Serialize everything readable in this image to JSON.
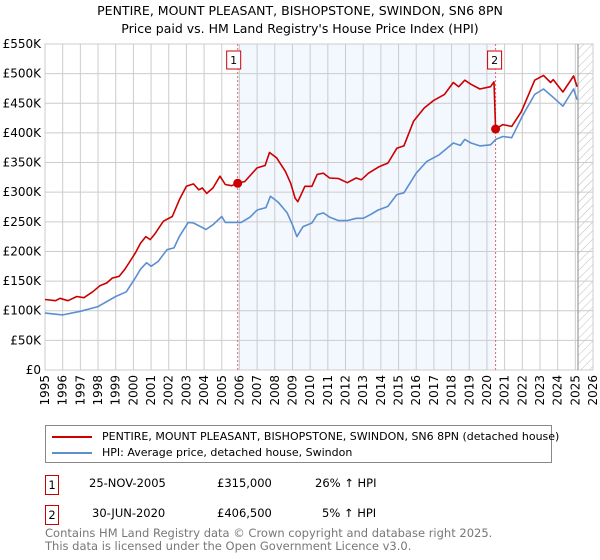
{
  "chart_data": {
    "type": "line",
    "title": "PENTIRE, MOUNT PLEASANT, BISHOPSTONE, SWINDON, SN6 8PN",
    "subtitle": "Price paid vs. HM Land Registry's House Price Index (HPI)",
    "xlim": [
      1995,
      2026
    ],
    "ylim": [
      0,
      550000
    ],
    "grid": true,
    "x_ticks": [
      "1995",
      "1996",
      "1997",
      "1998",
      "1999",
      "2000",
      "2001",
      "2002",
      "2003",
      "2004",
      "2005",
      "2006",
      "2007",
      "2008",
      "2009",
      "2010",
      "2011",
      "2012",
      "2013",
      "2014",
      "2015",
      "2016",
      "2017",
      "2018",
      "2019",
      "2020",
      "2021",
      "2022",
      "2023",
      "2024",
      "2025",
      "2026"
    ],
    "y_ticks": [
      {
        "value": 0,
        "label": "£0"
      },
      {
        "value": 50000,
        "label": "£50K"
      },
      {
        "value": 100000,
        "label": "£100K"
      },
      {
        "value": 150000,
        "label": "£150K"
      },
      {
        "value": 200000,
        "label": "£200K"
      },
      {
        "value": 250000,
        "label": "£250K"
      },
      {
        "value": 300000,
        "label": "£300K"
      },
      {
        "value": 350000,
        "label": "£350K"
      },
      {
        "value": 400000,
        "label": "£400K"
      },
      {
        "value": 450000,
        "label": "£450K"
      },
      {
        "value": 500000,
        "label": "£500K"
      },
      {
        "value": 550000,
        "label": "£550K"
      }
    ],
    "shaded_range": [
      2005.9,
      2020.49
    ],
    "future_hatch_from": 2025.15,
    "series": [
      {
        "name": "PENTIRE, MOUNT PLEASANT, BISHOPSTONE, SWINDON, SN6 8PN (detached house)",
        "color": "#cc0000",
        "points": [
          [
            1995,
            119
          ],
          [
            1995.6,
            117
          ],
          [
            1995.85,
            121
          ],
          [
            1996.3,
            117
          ],
          [
            1996.8,
            124
          ],
          [
            1997.2,
            122
          ],
          [
            1997.7,
            132
          ],
          [
            1998.1,
            142
          ],
          [
            1998.5,
            147
          ],
          [
            1998.8,
            155
          ],
          [
            1999.2,
            158
          ],
          [
            1999.5,
            169
          ],
          [
            1999.8,
            183
          ],
          [
            2000.1,
            197
          ],
          [
            2000.4,
            214
          ],
          [
            2000.7,
            225
          ],
          [
            2000.95,
            220
          ],
          [
            2001.2,
            229
          ],
          [
            2001.7,
            251
          ],
          [
            2002.2,
            259
          ],
          [
            2002.6,
            287
          ],
          [
            2003,
            310
          ],
          [
            2003.4,
            314
          ],
          [
            2003.7,
            304
          ],
          [
            2003.9,
            307
          ],
          [
            2004.15,
            298
          ],
          [
            2004.5,
            307
          ],
          [
            2004.9,
            327
          ],
          [
            2005.2,
            313
          ],
          [
            2005.55,
            311
          ],
          [
            2005.9,
            315
          ],
          [
            2006.3,
            318
          ],
          [
            2007,
            341
          ],
          [
            2007.45,
            345
          ],
          [
            2007.7,
            367
          ],
          [
            2008.1,
            358
          ],
          [
            2008.6,
            335
          ],
          [
            2008.9,
            315
          ],
          [
            2009.15,
            290
          ],
          [
            2009.3,
            284
          ],
          [
            2009.7,
            310
          ],
          [
            2010.1,
            310
          ],
          [
            2010.4,
            330
          ],
          [
            2010.75,
            332
          ],
          [
            2011.1,
            324
          ],
          [
            2011.6,
            323
          ],
          [
            2012.1,
            316
          ],
          [
            2012.6,
            324
          ],
          [
            2012.9,
            321
          ],
          [
            2013.3,
            332
          ],
          [
            2013.9,
            343
          ],
          [
            2014.4,
            349
          ],
          [
            2014.9,
            374
          ],
          [
            2015.3,
            378
          ],
          [
            2015.85,
            420
          ],
          [
            2016.45,
            442
          ],
          [
            2017,
            455
          ],
          [
            2017.6,
            465
          ],
          [
            2018.1,
            485
          ],
          [
            2018.4,
            478
          ],
          [
            2018.75,
            489
          ],
          [
            2019.1,
            482
          ],
          [
            2019.6,
            474
          ],
          [
            2020.2,
            478
          ],
          [
            2020.4,
            486
          ],
          [
            2020.49,
            406.5
          ],
          [
            2020.9,
            414
          ],
          [
            2021.4,
            411
          ],
          [
            2021.95,
            436
          ],
          [
            2022.7,
            489
          ],
          [
            2023.2,
            497
          ],
          [
            2023.6,
            485
          ],
          [
            2023.75,
            490
          ],
          [
            2024.3,
            469
          ],
          [
            2024.9,
            496
          ],
          [
            2025.1,
            478
          ]
        ]
      },
      {
        "name": "HPI: Average price, detached house, Swindon",
        "color": "#5b8fd0",
        "points": [
          [
            1995,
            96
          ],
          [
            1996,
            93
          ],
          [
            1997,
            99
          ],
          [
            1998,
            107
          ],
          [
            1999,
            124
          ],
          [
            1999.6,
            132
          ],
          [
            2000.1,
            155
          ],
          [
            2000.4,
            170
          ],
          [
            2000.75,
            181
          ],
          [
            2001,
            175
          ],
          [
            2001.4,
            183
          ],
          [
            2001.9,
            203
          ],
          [
            2002.3,
            206
          ],
          [
            2002.6,
            225
          ],
          [
            2003.1,
            249
          ],
          [
            2003.4,
            248
          ],
          [
            2003.8,
            242
          ],
          [
            2004.1,
            237
          ],
          [
            2004.5,
            245
          ],
          [
            2005,
            259
          ],
          [
            2005.2,
            249
          ],
          [
            2005.85,
            249
          ],
          [
            2006.1,
            249
          ],
          [
            2006.6,
            258
          ],
          [
            2007,
            270
          ],
          [
            2007.5,
            274
          ],
          [
            2007.75,
            293
          ],
          [
            2008.2,
            283
          ],
          [
            2008.7,
            265
          ],
          [
            2009,
            245
          ],
          [
            2009.25,
            225
          ],
          [
            2009.6,
            242
          ],
          [
            2010.1,
            248
          ],
          [
            2010.4,
            262
          ],
          [
            2010.75,
            265
          ],
          [
            2011.1,
            258
          ],
          [
            2011.6,
            252
          ],
          [
            2012.1,
            252
          ],
          [
            2012.6,
            256
          ],
          [
            2013,
            256
          ],
          [
            2013.4,
            262
          ],
          [
            2013.85,
            270
          ],
          [
            2014.4,
            276
          ],
          [
            2014.9,
            296
          ],
          [
            2015.3,
            299
          ],
          [
            2016,
            332
          ],
          [
            2016.6,
            352
          ],
          [
            2017.3,
            363
          ],
          [
            2018.1,
            383
          ],
          [
            2018.5,
            379
          ],
          [
            2018.75,
            389
          ],
          [
            2019.1,
            383
          ],
          [
            2019.6,
            378
          ],
          [
            2020.2,
            380
          ],
          [
            2020.5,
            389
          ],
          [
            2020.9,
            394
          ],
          [
            2021.4,
            392
          ],
          [
            2022.05,
            431
          ],
          [
            2022.7,
            465
          ],
          [
            2023.2,
            474
          ],
          [
            2023.75,
            460
          ],
          [
            2024.3,
            445
          ],
          [
            2024.9,
            474
          ],
          [
            2025.1,
            456
          ]
        ]
      }
    ],
    "y_units_note": "points y values in £ thousands",
    "annotations": [
      {
        "label": "1",
        "x": 2005.9,
        "y": 315
      },
      {
        "label": "2",
        "x": 2020.49,
        "y": 406.5
      }
    ]
  },
  "legend": {
    "red_label": "PENTIRE, MOUNT PLEASANT, BISHOPSTONE, SWINDON, SN6 8PN (detached house)",
    "blue_label": "HPI: Average price, detached house, Swindon"
  },
  "sales": [
    {
      "num": "1",
      "date": "25-NOV-2005",
      "price": "£315,000",
      "delta": "26% ↑ HPI"
    },
    {
      "num": "2",
      "date": "30-JUN-2020",
      "price": "£406,500",
      "delta": "5% ↑ HPI"
    }
  ],
  "footer": {
    "line1": "Contains HM Land Registry data © Crown copyright and database right 2025.",
    "line2": "This data is licensed under the Open Government Licence v3.0."
  }
}
